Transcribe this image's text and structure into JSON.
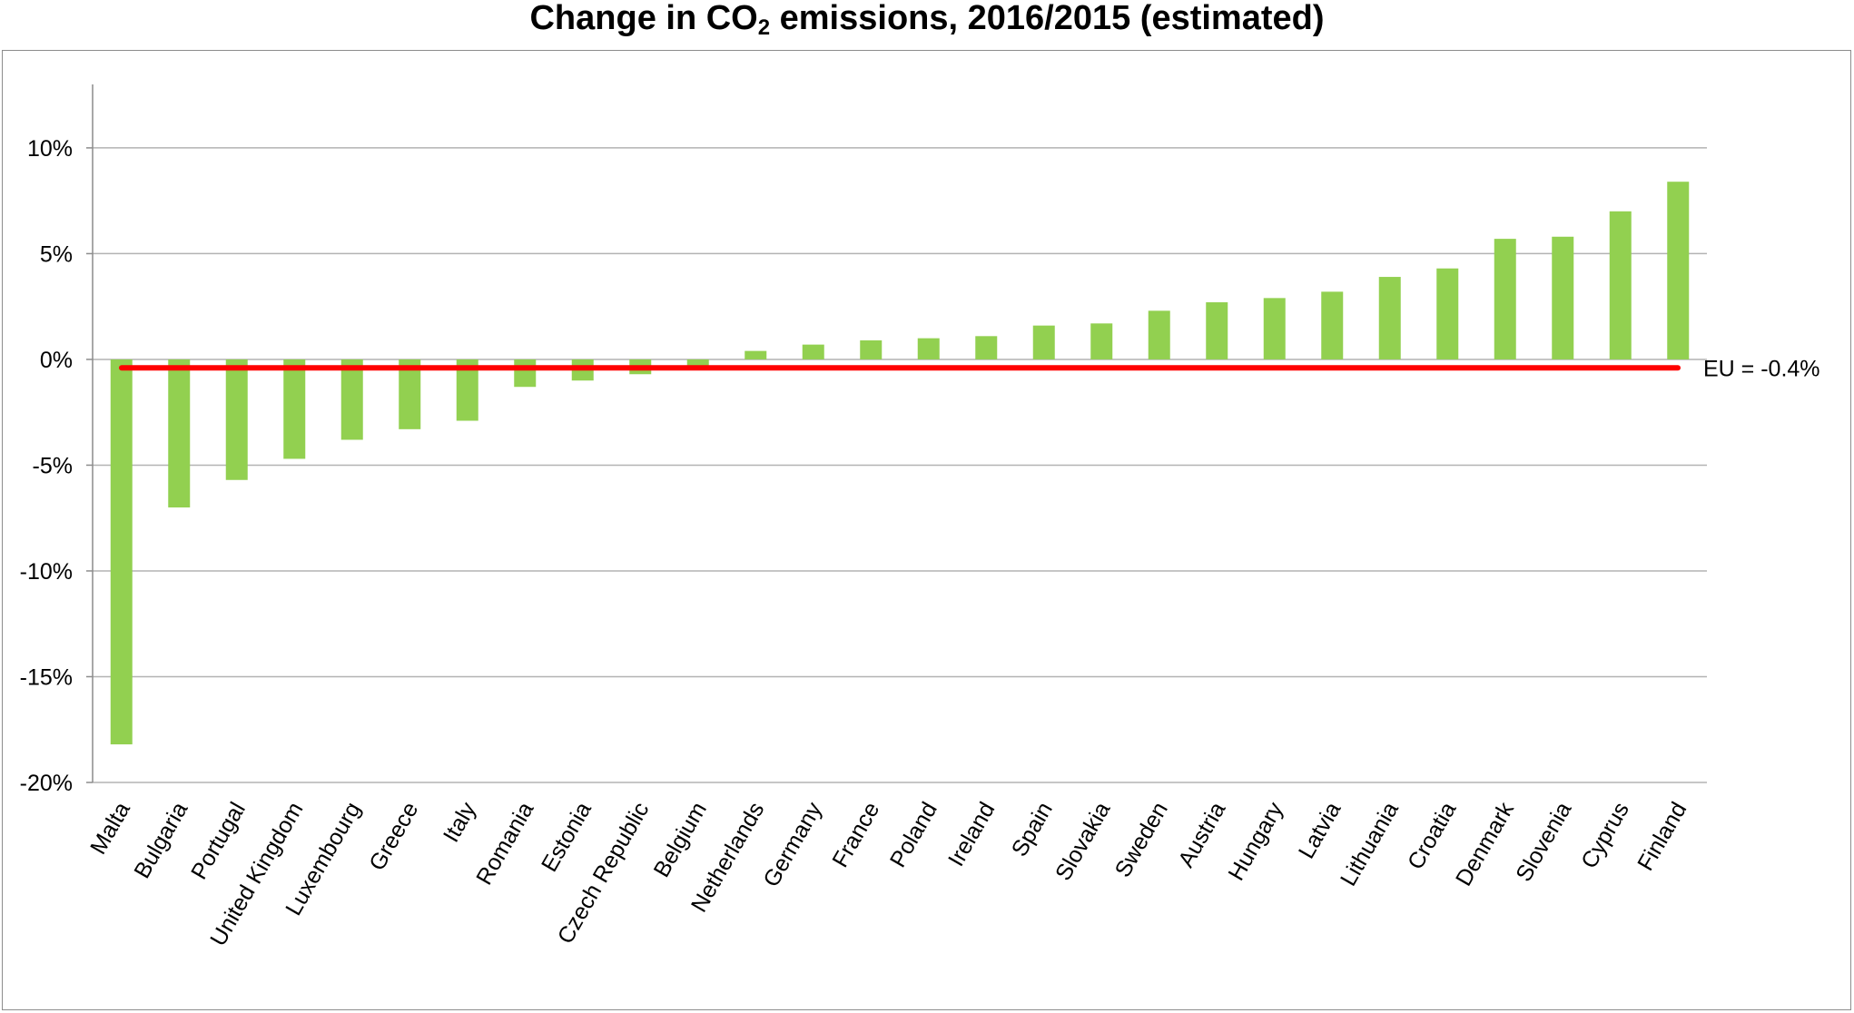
{
  "title": {
    "prefix": "Change in CO",
    "subscript": "2",
    "suffix": " emissions, 2016/2015 (estimated)"
  },
  "chart_data": {
    "type": "bar",
    "title": "Change in CO2 emissions, 2016/2015 (estimated)",
    "xlabel": "",
    "ylabel": "",
    "ylim": [
      -20,
      13
    ],
    "y_ticks": [
      10,
      5,
      0,
      -5,
      -10,
      -15,
      -20
    ],
    "y_tick_labels": [
      "10%",
      "5%",
      "0%",
      "-5%",
      "-10%",
      "-15%",
      "-20%"
    ],
    "grid": true,
    "categories": [
      "Malta",
      "Bulgaria",
      "Portugal",
      "United Kingdom",
      "Luxembourg",
      "Greece",
      "Italy",
      "Romania",
      "Estonia",
      "Czech Republic",
      "Belgium",
      "Netherlands",
      "Germany",
      "France",
      "Poland",
      "Ireland",
      "Spain",
      "Slovakia",
      "Sweden",
      "Austria",
      "Hungary",
      "Latvia",
      "Lithuania",
      "Croatia",
      "Denmark",
      "Slovenia",
      "Cyprus",
      "Finland"
    ],
    "values": [
      -18.2,
      -7.0,
      -5.7,
      -4.7,
      -3.8,
      -3.3,
      -2.9,
      -1.3,
      -1.0,
      -0.7,
      -0.5,
      0.4,
      0.7,
      0.9,
      1.0,
      1.1,
      1.6,
      1.7,
      2.3,
      2.7,
      2.9,
      3.2,
      3.9,
      4.3,
      5.7,
      5.8,
      7.0,
      8.4
    ],
    "bar_color": "#92d050",
    "reference_line": {
      "value": -0.4,
      "label": "EU = -0.4%",
      "color": "#ff0000"
    }
  }
}
